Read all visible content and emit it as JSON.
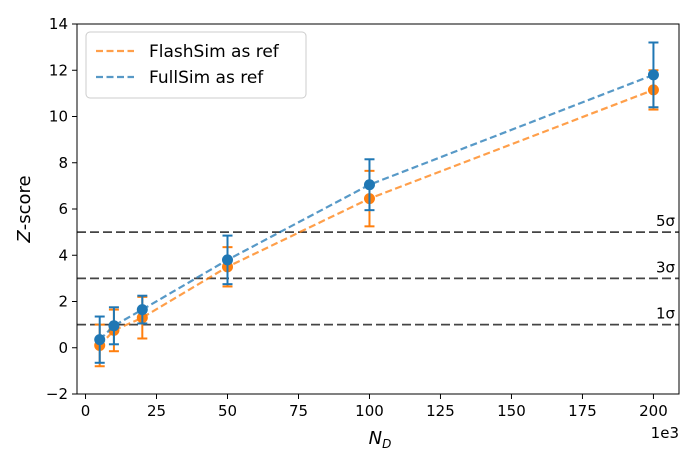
{
  "chart_data": {
    "type": "line",
    "xlabel": "N_D",
    "ylabel": "Z-score",
    "x_offset_label": "1e3",
    "xlim": [
      -3,
      209
    ],
    "ylim": [
      -2,
      14
    ],
    "x_ticks": [
      0,
      25,
      50,
      75,
      100,
      125,
      150,
      175,
      200
    ],
    "y_ticks": [
      -2,
      0,
      2,
      4,
      6,
      8,
      10,
      12,
      14
    ],
    "grid": false,
    "legend_position": "top-left",
    "x": [
      5,
      10,
      20,
      50,
      100,
      200
    ],
    "series": [
      {
        "name": "FlashSim as ref",
        "color": "#ff7f0e",
        "line_style": "dashed",
        "values": [
          0.1,
          0.75,
          1.3,
          3.5,
          6.45,
          11.15
        ],
        "errors": [
          0.9,
          0.9,
          0.9,
          0.85,
          1.2,
          0.85
        ]
      },
      {
        "name": "FullSim as ref",
        "color": "#1f77b4",
        "line_style": "dashed",
        "values": [
          0.35,
          0.95,
          1.65,
          3.8,
          7.05,
          11.8
        ],
        "errors": [
          1.0,
          0.8,
          0.6,
          1.05,
          1.1,
          1.4
        ]
      }
    ],
    "reference_lines": [
      {
        "y": 5,
        "label": "5σ"
      },
      {
        "y": 3,
        "label": "3σ"
      },
      {
        "y": 1,
        "label": "1σ"
      }
    ]
  }
}
